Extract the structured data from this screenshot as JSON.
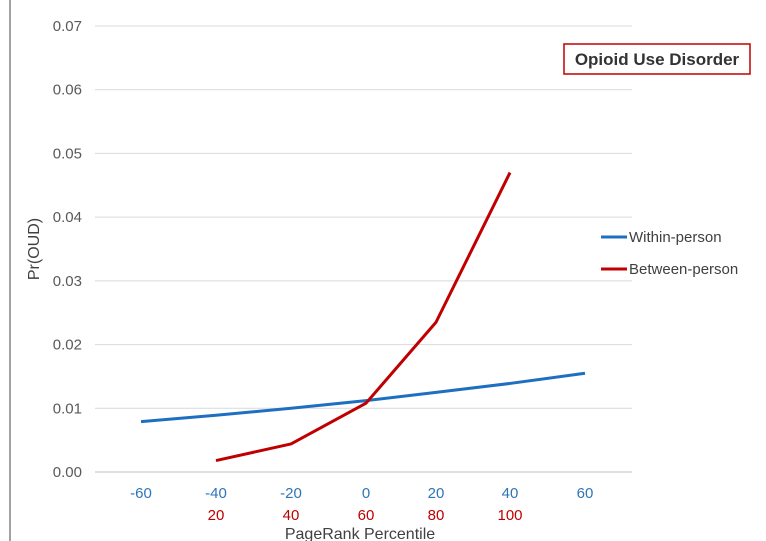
{
  "chart_data": {
    "type": "line",
    "title": "",
    "annotation": "Opioid Use Disorder",
    "xlabel": "PageRank Percentile",
    "ylabel": "Pr(OUD)",
    "ylim": [
      0,
      0.07
    ],
    "yticks": [
      "0.00",
      "0.01",
      "0.02",
      "0.03",
      "0.04",
      "0.05",
      "0.06",
      "0.07"
    ],
    "x_categories_within": [
      "-60",
      "-40",
      "-20",
      "0",
      "20",
      "40",
      "60"
    ],
    "x_categories_between": [
      "20",
      "40",
      "60",
      "80",
      "100"
    ],
    "grid": true,
    "legend_position": "right",
    "series": [
      {
        "name": "Within-person",
        "color": "#1f6fc0",
        "tick_color": "#2e75b6",
        "x": [
          -60,
          -40,
          -20,
          0,
          20,
          40,
          60
        ],
        "values": [
          0.0079,
          0.0089,
          0.01,
          0.0112,
          0.0125,
          0.0139,
          0.0155
        ]
      },
      {
        "name": "Between-person",
        "color": "#c00000",
        "tick_color": "#c00000",
        "x": [
          20,
          40,
          60,
          80,
          100
        ],
        "values": [
          0.0018,
          0.0044,
          0.0108,
          0.0235,
          0.047
        ]
      }
    ]
  }
}
